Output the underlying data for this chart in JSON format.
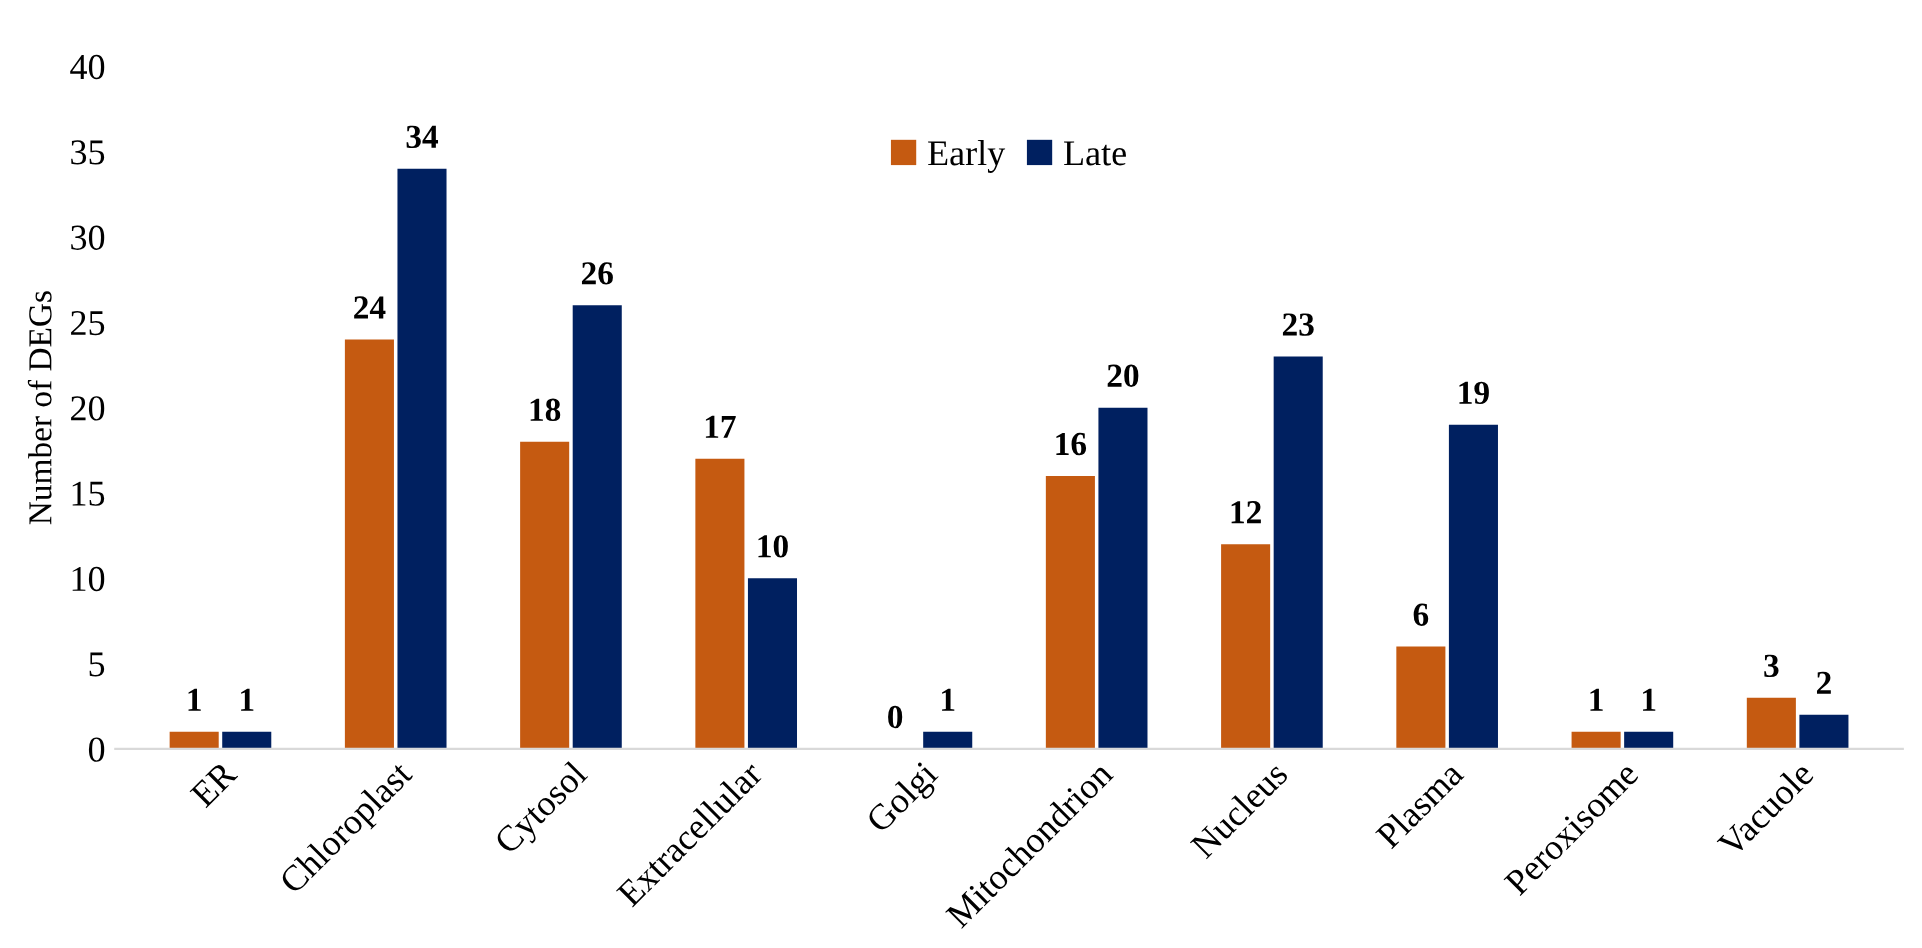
{
  "chart_data": {
    "type": "bar",
    "ylabel": "Number of DEGs",
    "categories": [
      "ER",
      "Chloroplast",
      "Cytosol",
      "Extracellular",
      "Golgi",
      "Mitochondrion",
      "Nucleus",
      "Plasma",
      "Peroxisome",
      "Vacuole"
    ],
    "series": [
      {
        "name": "Early",
        "color": "#c55a11",
        "values": [
          1,
          24,
          18,
          17,
          0,
          16,
          12,
          6,
          1,
          3
        ]
      },
      {
        "name": "Late",
        "color": "#002060",
        "values": [
          1,
          34,
          26,
          10,
          1,
          20,
          23,
          19,
          1,
          2
        ]
      }
    ],
    "ylim": [
      0,
      40
    ],
    "yticks": [
      0,
      5,
      10,
      15,
      20,
      25,
      30,
      35,
      40
    ],
    "grid": false,
    "legend": "top",
    "data_labels": true
  }
}
